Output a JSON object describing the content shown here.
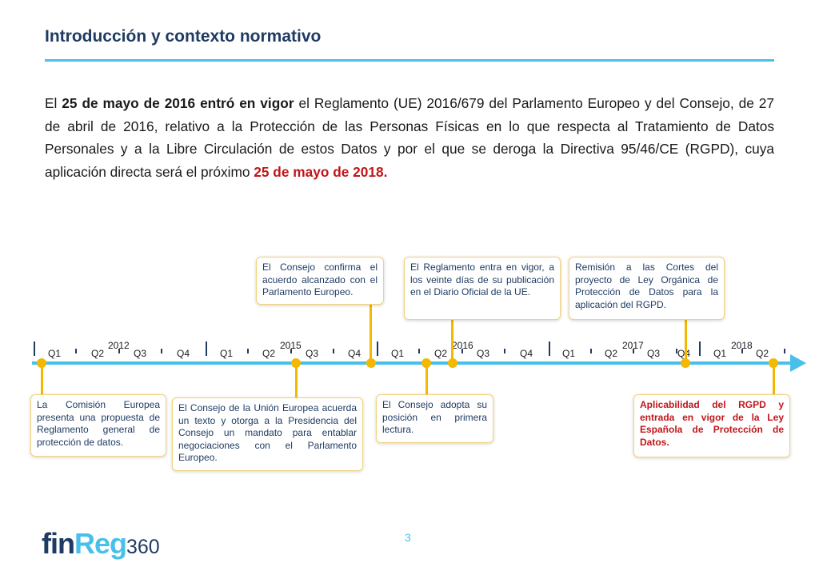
{
  "title": "Introducción y contexto normativo",
  "intro": {
    "part1": "El ",
    "bold1": "25 de mayo de 2016 entró en vigor",
    "part2": " el Reglamento (UE) 2016/679 del Parlamento Europeo y del Consejo, de 27 de abril de 2016, relativo a la Protección de las Personas Físicas en lo que respecta al Tratamiento de Datos Personales y a la Libre Circulación de estos Datos y por el que se deroga la Directiva 95/46/CE (RGPD), cuya aplicación directa será el próximo ",
    "bold_red": "25 de mayo de 2018."
  },
  "timeline": {
    "years": [
      "2012",
      "2015",
      "2016",
      "2017",
      "2018"
    ],
    "quarters": [
      "Q1",
      "Q2",
      "Q3",
      "Q4"
    ],
    "last_year_quarters": [
      "Q1",
      "Q2"
    ],
    "events_above": [
      "El Consejo confirma el acuerdo alcanzado con el Parlamento Europeo.",
      "El Reglamento entra en vigor, a los veinte días de su publicación en el Diario Oficial de la UE.",
      "Remisión a las Cortes del proyecto de Ley Orgánica de Protección de Datos para la aplicación del RGPD."
    ],
    "events_below": [
      "La Comisión Europea presenta una propuesta de Reglamento general de protección de datos.",
      "El Consejo de la Unión Europea acuerda un texto y otorga a la Presidencia del Consejo un mandato para entablar negociaciones con el Parlamento Europeo.",
      "El Consejo adopta su posición en primera lectura.",
      "Aplicabilidad del RGPD y entrada en vigor de la Ley Española de Protección de Datos."
    ]
  },
  "page_number": "3",
  "logo": {
    "part1": "fin",
    "part2": "Reg",
    "part3": "360"
  },
  "colors": {
    "accent": "#48c0ea",
    "navy": "#1f3b63",
    "marker": "#f5b800",
    "highlight": "#c0161a"
  }
}
